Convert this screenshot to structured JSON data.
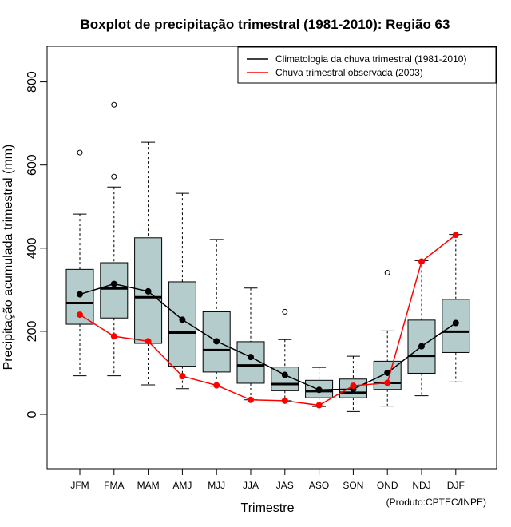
{
  "chart_data": {
    "type": "boxplot",
    "title": "Boxplot de precipitação trimestral (1981-2010): Região 63",
    "xlabel": "Trimestre",
    "ylabel": "Precipitação acumulada trimestral (mm)",
    "ylim": [
      -130,
      880
    ],
    "yticks": [
      0,
      200,
      400,
      600,
      800
    ],
    "credit": "(Produto:CPTEC/INPE)",
    "categories": [
      "JFM",
      "FMA",
      "MAM",
      "AMJ",
      "MJJ",
      "JJA",
      "JAS",
      "ASO",
      "SON",
      "OND",
      "NDJ",
      "DJF"
    ],
    "boxes": [
      {
        "min": 93,
        "q1": 217,
        "median": 268,
        "q3": 349,
        "max": 482,
        "outliers": [
          630
        ]
      },
      {
        "min": 93,
        "q1": 232,
        "median": 303,
        "q3": 365,
        "max": 547,
        "outliers": [
          572,
          745
        ]
      },
      {
        "min": 71,
        "q1": 171,
        "median": 282,
        "q3": 425,
        "max": 655,
        "outliers": []
      },
      {
        "min": 62,
        "q1": 116,
        "median": 197,
        "q3": 319,
        "max": 532,
        "outliers": []
      },
      {
        "min": 68,
        "q1": 102,
        "median": 155,
        "q3": 247,
        "max": 421,
        "outliers": []
      },
      {
        "min": 35,
        "q1": 75,
        "median": 118,
        "q3": 175,
        "max": 304,
        "outliers": []
      },
      {
        "min": 33,
        "q1": 57,
        "median": 73,
        "q3": 114,
        "max": 180,
        "outliers": [
          247
        ]
      },
      {
        "min": 19,
        "q1": 40,
        "median": 56,
        "q3": 82,
        "max": 113,
        "outliers": []
      },
      {
        "min": 7,
        "q1": 40,
        "median": 52,
        "q3": 85,
        "max": 140,
        "outliers": []
      },
      {
        "min": 20,
        "q1": 60,
        "median": 76,
        "q3": 128,
        "max": 201,
        "outliers": [
          341
        ]
      },
      {
        "min": 45,
        "q1": 99,
        "median": 141,
        "q3": 227,
        "max": 370,
        "outliers": []
      },
      {
        "min": 78,
        "q1": 149,
        "median": 199,
        "q3": 277,
        "max": 433,
        "outliers": []
      }
    ],
    "series": [
      {
        "name": "Climatologia da chuva trimestral (1981-2010)",
        "color": "#000000",
        "values": [
          289,
          314,
          296,
          228,
          176,
          138,
          95,
          59,
          61,
          100,
          164,
          220
        ]
      },
      {
        "name": "Chuva trimestral observada (2003)",
        "color": "#ff0000",
        "values": [
          240,
          188,
          176,
          92,
          70,
          35,
          33,
          22,
          69,
          76,
          368,
          432
        ]
      }
    ],
    "box_fill": "#b5cccc",
    "legend_position": "top-right"
  }
}
